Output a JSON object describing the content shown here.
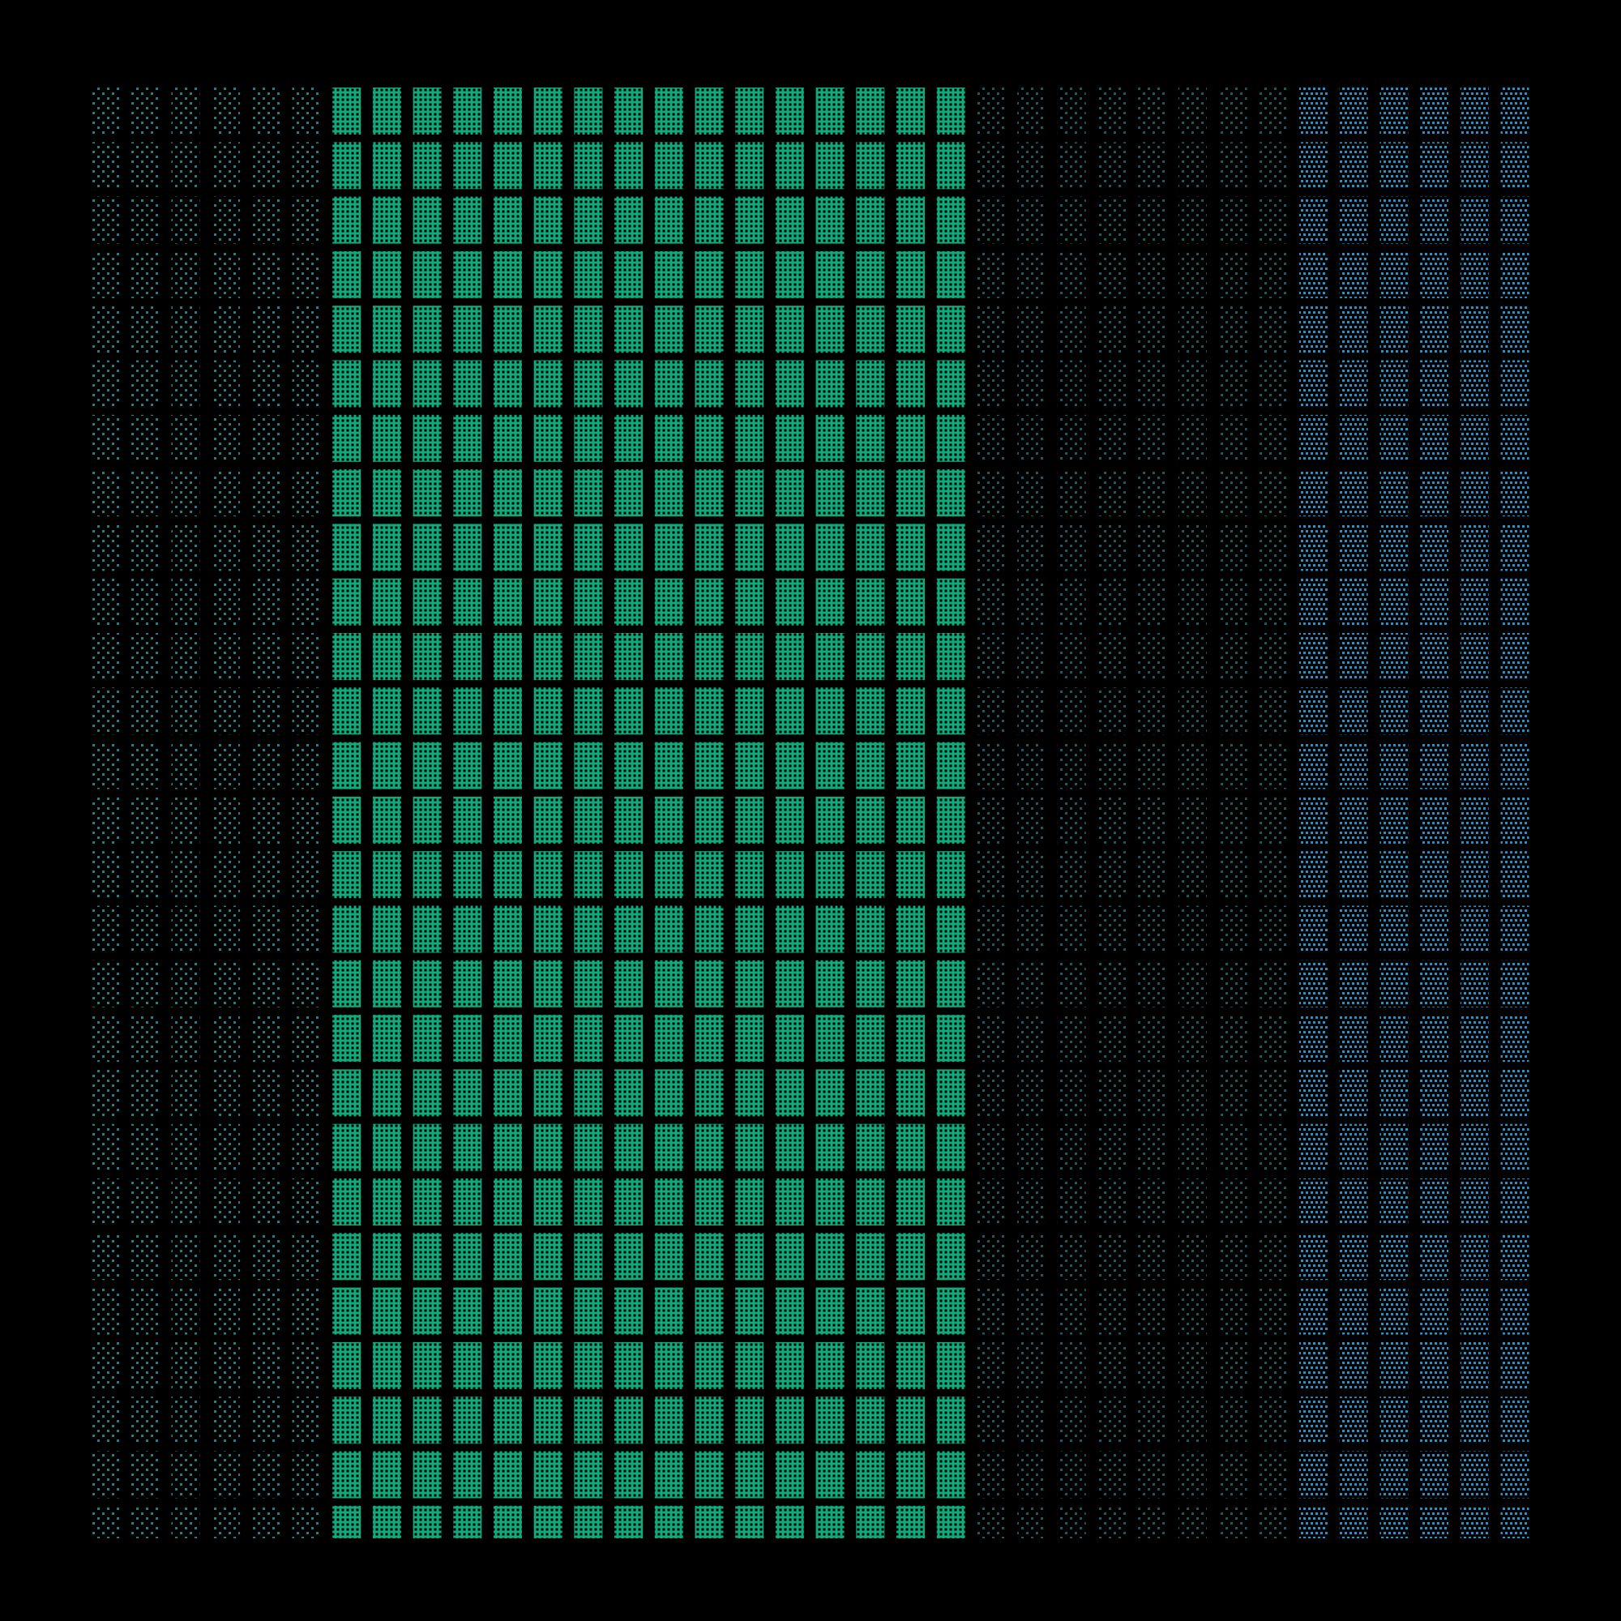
{
  "background": "#000000",
  "groups": [
    {
      "name": "dim-teal-dotted",
      "columns": 6,
      "color": "#2f7a80",
      "style": "sparse-dots"
    },
    {
      "name": "green-solid",
      "columns": 16,
      "color": "#12a97b",
      "style": "solid-with-holes"
    },
    {
      "name": "dark-teal-dotted",
      "columns": 8,
      "color": "#22585a",
      "style": "sparse-dots"
    },
    {
      "name": "blue-dotted",
      "columns": 7,
      "color": "#2b90c8",
      "style": "dense-dots"
    }
  ],
  "rows": 27
}
